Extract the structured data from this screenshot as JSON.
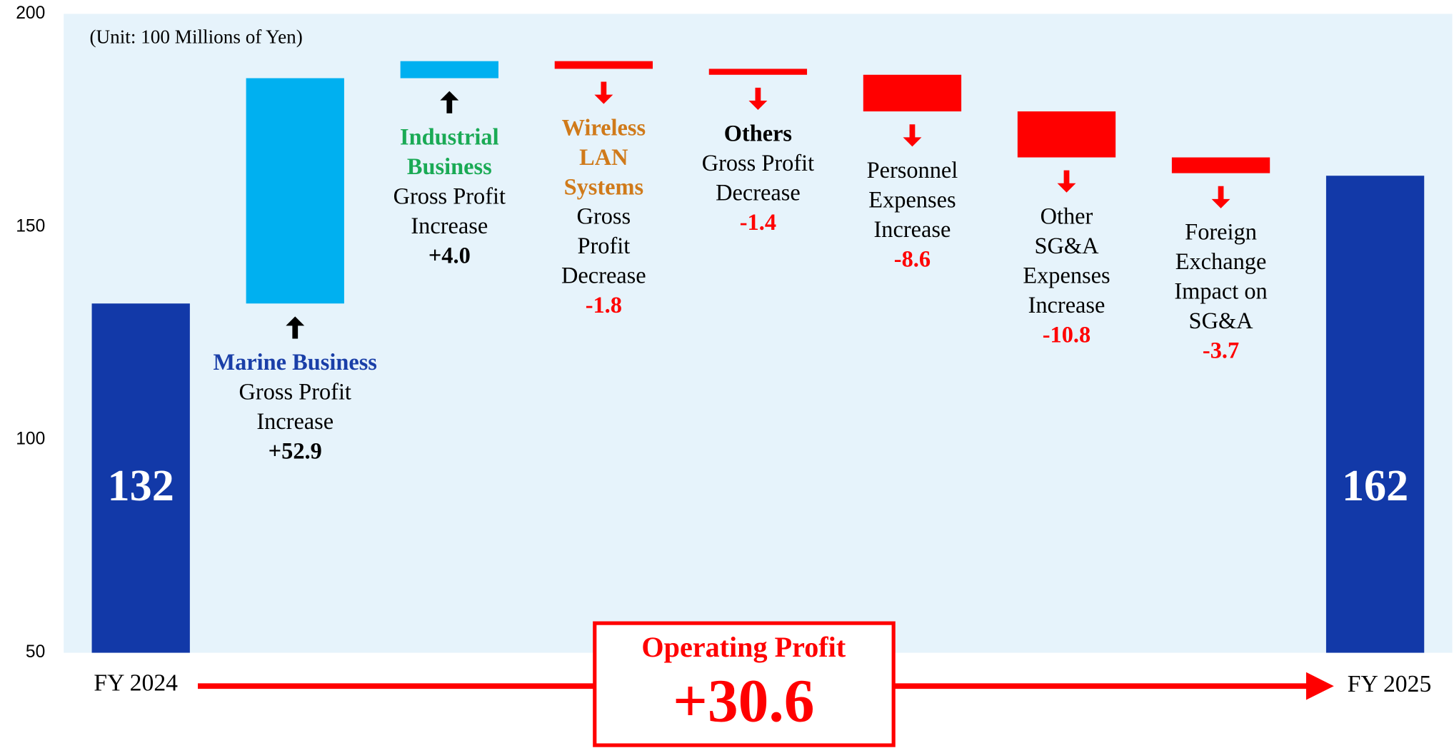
{
  "chart_data": {
    "type": "waterfall",
    "note": "(Unit: 100 Millions of Yen)",
    "ylim": [
      50,
      200
    ],
    "yticks": [
      50,
      100,
      150,
      200
    ],
    "grid": false,
    "background": "#e6f3fb",
    "start": {
      "label": "FY 2024",
      "value": 132,
      "color": "#1239a8"
    },
    "end": {
      "label": "FY 2025",
      "value": 162,
      "color": "#1239a8"
    },
    "steps": [
      {
        "name": [
          "Marine Business"
        ],
        "name_color": "#1a3fa8",
        "text": [
          "Gross Profit",
          "Increase"
        ],
        "value": 52.9,
        "value_label": "+52.9",
        "color": "#00b0f0",
        "label_color": "#000000"
      },
      {
        "name": [
          "Industrial",
          "Business"
        ],
        "name_color": "#1aaa55",
        "text": [
          "Gross Profit",
          "Increase"
        ],
        "value": 4.0,
        "value_label": "+4.0",
        "color": "#00b0f0",
        "label_color": "#000000"
      },
      {
        "name": [
          "Wireless",
          "LAN",
          "Systems"
        ],
        "name_color": "#d07a1a",
        "text": [
          "Gross",
          "Profit",
          "Decrease"
        ],
        "value": -1.8,
        "value_label": "-1.8",
        "color": "#ff0000",
        "label_color": "#ff0000"
      },
      {
        "name": [
          "Others"
        ],
        "name_color": "#000000",
        "text": [
          "Gross Profit",
          "Decrease"
        ],
        "value": -1.4,
        "value_label": "-1.4",
        "color": "#ff0000",
        "label_color": "#ff0000"
      },
      {
        "name": [],
        "name_color": "#000000",
        "text": [
          "Personnel",
          "Expenses",
          "Increase"
        ],
        "value": -8.6,
        "value_label": "-8.6",
        "color": "#ff0000",
        "label_color": "#ff0000"
      },
      {
        "name": [],
        "name_color": "#000000",
        "text": [
          "Other",
          "SG&A",
          "Expenses",
          "Increase"
        ],
        "value": -10.8,
        "value_label": "-10.8",
        "color": "#ff0000",
        "label_color": "#ff0000"
      },
      {
        "name": [],
        "name_color": "#000000",
        "text": [
          "Foreign",
          "Exchange",
          "Impact on",
          "SG&A"
        ],
        "value": -3.7,
        "value_label": "-3.7",
        "color": "#ff0000",
        "label_color": "#ff0000"
      }
    ],
    "summary": {
      "title": "Operating Profit",
      "value": 30.6,
      "value_label": "+30.6",
      "color": "#ff0000"
    }
  }
}
